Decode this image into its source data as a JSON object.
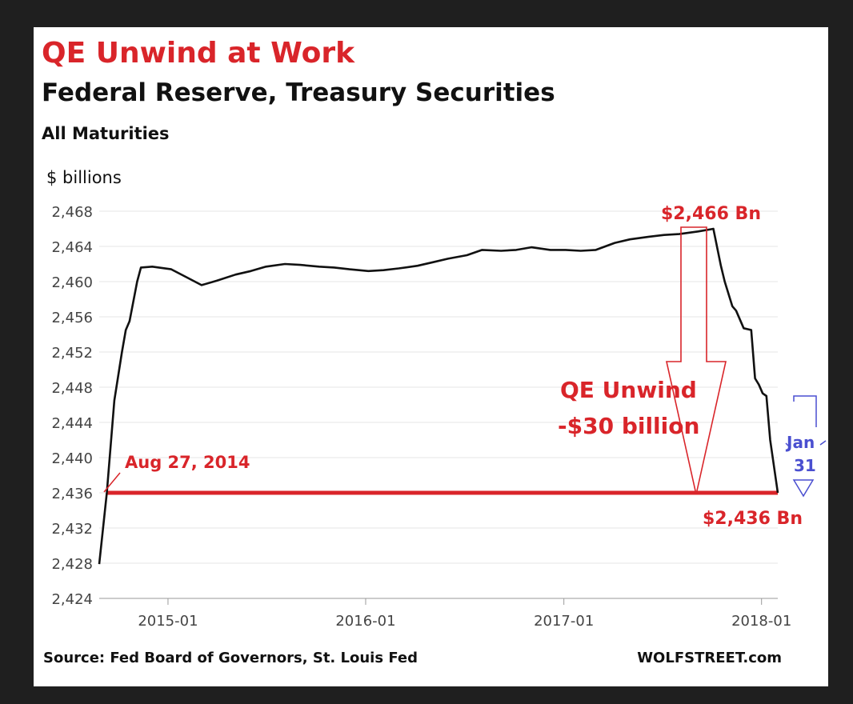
{
  "header": {
    "title": "QE Unwind at Work",
    "subtitle": "Federal Reserve, Treasury Securities",
    "subsubtitle": "All Maturities",
    "unit": "$ billions"
  },
  "footer": {
    "source": "Source: Fed Board of Governors, St. Louis Fed",
    "brand": "WOLFSTREET.com"
  },
  "annotations": {
    "peak_label": "$2,466 Bn",
    "start_label": "Aug 27, 2014",
    "unwind_line1": "QE Unwind",
    "unwind_line2": "-$30 billion",
    "end_label": "$2,436 Bn",
    "jan_line1": "Jan",
    "jan_line2": "31"
  },
  "colors": {
    "accent": "#d9252a",
    "line": "#111111",
    "blue": "#4a4fd0",
    "grid": "#e6e6e6"
  },
  "chart_data": {
    "type": "line",
    "title": "QE Unwind at Work",
    "subtitle": "Federal Reserve, Treasury Securities",
    "ylabel": "$ billions",
    "xlabel": "",
    "ylim": [
      2424,
      2468
    ],
    "xlim": [
      "2014-08-27",
      "2018-01-31"
    ],
    "yticks": [
      "2,424",
      "2,428",
      "2,432",
      "2,436",
      "2,440",
      "2,444",
      "2,448",
      "2,452",
      "2,456",
      "2,460",
      "2,464",
      "2,468"
    ],
    "ytick_values": [
      2424,
      2428,
      2432,
      2436,
      2440,
      2444,
      2448,
      2452,
      2456,
      2460,
      2464,
      2468
    ],
    "xticks": [
      "2015-01",
      "2016-01",
      "2017-01",
      "2018-01"
    ],
    "xtick_dates": [
      "2015-01-01",
      "2016-01-01",
      "2017-01-01",
      "2018-01-01"
    ],
    "grid": true,
    "series": [
      {
        "points": [
          [
            "2014-08-27",
            2427.9
          ],
          [
            "2014-09-10",
            2436.0
          ],
          [
            "2014-09-24",
            2446.5
          ],
          [
            "2014-10-08",
            2452.0
          ],
          [
            "2014-10-15",
            2454.5
          ],
          [
            "2014-10-22",
            2455.5
          ],
          [
            "2014-11-05",
            2460.0
          ],
          [
            "2014-11-12",
            2461.6
          ],
          [
            "2014-12-03",
            2461.7
          ],
          [
            "2015-01-07",
            2461.4
          ],
          [
            "2015-02-04",
            2460.5
          ],
          [
            "2015-03-04",
            2459.6
          ],
          [
            "2015-04-01",
            2460.1
          ],
          [
            "2015-05-06",
            2460.8
          ],
          [
            "2015-06-03",
            2461.2
          ],
          [
            "2015-07-01",
            2461.7
          ],
          [
            "2015-08-05",
            2462.0
          ],
          [
            "2015-09-02",
            2461.9
          ],
          [
            "2015-10-07",
            2461.7
          ],
          [
            "2015-11-04",
            2461.6
          ],
          [
            "2015-12-02",
            2461.4
          ],
          [
            "2016-01-06",
            2461.2
          ],
          [
            "2016-02-03",
            2461.3
          ],
          [
            "2016-03-02",
            2461.5
          ],
          [
            "2016-04-06",
            2461.8
          ],
          [
            "2016-05-04",
            2462.2
          ],
          [
            "2016-06-01",
            2462.6
          ],
          [
            "2016-07-06",
            2463.0
          ],
          [
            "2016-08-03",
            2463.6
          ],
          [
            "2016-09-07",
            2463.5
          ],
          [
            "2016-10-05",
            2463.6
          ],
          [
            "2016-11-02",
            2463.9
          ],
          [
            "2016-12-07",
            2463.6
          ],
          [
            "2017-01-04",
            2463.6
          ],
          [
            "2017-02-01",
            2463.5
          ],
          [
            "2017-03-01",
            2463.6
          ],
          [
            "2017-04-05",
            2464.4
          ],
          [
            "2017-05-03",
            2464.8
          ],
          [
            "2017-06-07",
            2465.1
          ],
          [
            "2017-07-05",
            2465.3
          ],
          [
            "2017-08-02",
            2465.4
          ],
          [
            "2017-09-06",
            2465.7
          ],
          [
            "2017-10-04",
            2466.0
          ],
          [
            "2017-10-18",
            2461.8
          ],
          [
            "2017-10-25",
            2460.0
          ],
          [
            "2017-11-08",
            2457.2
          ],
          [
            "2017-11-15",
            2456.7
          ],
          [
            "2017-11-29",
            2454.7
          ],
          [
            "2017-12-13",
            2454.5
          ],
          [
            "2017-12-20",
            2449.0
          ],
          [
            "2017-12-27",
            2448.3
          ],
          [
            "2018-01-03",
            2447.3
          ],
          [
            "2018-01-10",
            2447.0
          ],
          [
            "2018-01-17",
            2442.0
          ],
          [
            "2018-01-31",
            2436.0
          ]
        ]
      }
    ],
    "reference_line": {
      "y": 2436,
      "x_start": "2014-09-10",
      "x_end": "2018-01-31"
    }
  }
}
